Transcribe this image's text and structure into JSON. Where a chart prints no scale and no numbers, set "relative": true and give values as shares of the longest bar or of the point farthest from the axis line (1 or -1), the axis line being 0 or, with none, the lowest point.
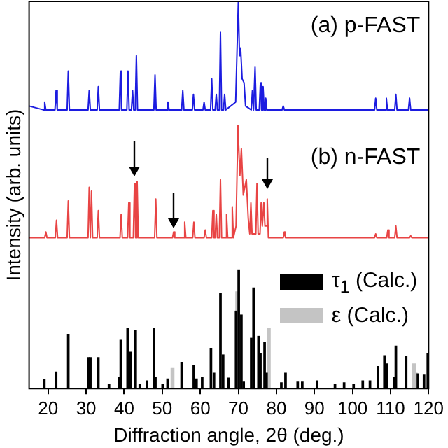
{
  "chart_data": {
    "type": "line",
    "relative": true,
    "xlabel": "Diffraction angle, 2θ (deg.)",
    "ylabel": "Intensity (arb. units)",
    "xlim": [
      15,
      120
    ],
    "xticks": [
      20,
      30,
      40,
      50,
      60,
      70,
      80,
      90,
      100,
      110,
      120
    ],
    "grid": false,
    "legend": "right",
    "marker": "none",
    "annotations": [
      "(a) p-FAST",
      "(b) n-FAST"
    ],
    "series": [
      {
        "color": "#1c1ce0",
        "x": [
          15,
          18.8,
          19.1,
          19.4,
          21.8,
          22.1,
          22.4,
          25.0,
          25.3,
          25.6,
          30.5,
          30.8,
          31.1,
          32.9,
          33.2,
          33.5,
          38.7,
          39.0,
          39.3,
          40.7,
          41.0,
          41.3,
          41.9,
          42.2,
          42.5,
          42.9,
          43.2,
          43.5,
          47.8,
          48.1,
          48.4,
          51.2,
          51.5,
          51.8,
          55.1,
          55.4,
          55.7,
          57.9,
          58.2,
          58.5,
          60.7,
          61.0,
          61.3,
          62.7,
          63.0,
          63.3,
          63.9,
          64.2,
          64.5,
          65.0,
          65.3,
          65.6,
          66.1,
          66.4,
          66.7,
          69.3,
          70.0,
          70.3,
          70.6,
          71.0,
          71.5,
          71.9,
          73.4,
          73.7,
          74.0,
          74.1,
          74.4,
          74.7,
          75.5,
          75.8,
          76.1,
          76.2,
          76.5,
          76.8,
          76.9,
          77.2,
          77.5,
          81.5,
          81.8,
          82.1,
          90,
          100,
          105.8,
          106.1,
          106.4,
          108.6,
          108.9,
          109.2,
          111.1,
          111.4,
          111.7,
          114.7,
          115.0,
          115.3,
          120
        ],
        "values": [
          0.73,
          0.72,
          0.74,
          0.72,
          0.72,
          0.77,
          0.72,
          0.72,
          0.82,
          0.72,
          0.72,
          0.77,
          0.72,
          0.72,
          0.78,
          0.72,
          0.72,
          0.82,
          0.72,
          0.72,
          0.82,
          0.72,
          0.72,
          0.77,
          0.72,
          0.72,
          0.86,
          0.72,
          0.72,
          0.81,
          0.72,
          0.72,
          0.74,
          0.72,
          0.72,
          0.77,
          0.72,
          0.72,
          0.76,
          0.72,
          0.72,
          0.74,
          0.72,
          0.72,
          0.8,
          0.72,
          0.72,
          0.76,
          0.72,
          0.72,
          0.92,
          0.72,
          0.72,
          0.76,
          0.72,
          0.74,
          1,
          0.86,
          0.88,
          0.8,
          0.79,
          0.73,
          0.72,
          0.77,
          0.72,
          0.72,
          0.83,
          0.72,
          0.72,
          0.79,
          0.72,
          0.72,
          0.78,
          0.72,
          0.72,
          0.75,
          0.72,
          0.72,
          0.73,
          0.72,
          0.72,
          0.72,
          0.72,
          0.75,
          0.72,
          0.72,
          0.75,
          0.72,
          0.72,
          0.76,
          0.72,
          0.72,
          0.75,
          0.72,
          0.72
        ]
      },
      {
        "color": "#e84444",
        "x": [
          15,
          19.1,
          19.4,
          19.7,
          21.9,
          22.2,
          22.5,
          25.0,
          25.3,
          25.6,
          30.5,
          30.8,
          31.1,
          31.4,
          31.7,
          32.9,
          33.2,
          33.5,
          38.9,
          39.2,
          39.5,
          40.9,
          41.2,
          41.5,
          42.4,
          42.7,
          43.0,
          43.1,
          43.4,
          43.7,
          48.0,
          48.3,
          48.6,
          52.7,
          53.0,
          53.3,
          55.6,
          55.9,
          56.2,
          58.0,
          58.3,
          58.6,
          61.0,
          61.3,
          61.6,
          63.0,
          63.3,
          63.6,
          63.9,
          64.2,
          64.5,
          65.0,
          65.3,
          65.6,
          66.6,
          66.9,
          67.2,
          68.1,
          68.4,
          68.7,
          69.4,
          69.9,
          70.4,
          70.8,
          71.3,
          72.1,
          72.6,
          73.0,
          73.3,
          73.6,
          74.6,
          74.9,
          75.2,
          75.7,
          76.0,
          76.3,
          76.4,
          76.7,
          77.0,
          77.3,
          77.6,
          77.9,
          81.8,
          82.1,
          82.4,
          90,
          100,
          105.8,
          106.1,
          106.4,
          109.0,
          109.3,
          109.6,
          111.1,
          111.4,
          111.7,
          115.0,
          115.3,
          115.6,
          120
        ],
        "values": [
          0.39,
          0.39,
          0.405,
          0.39,
          0.39,
          0.435,
          0.39,
          0.39,
          0.485,
          0.39,
          0.39,
          0.52,
          0.39,
          0.51,
          0.39,
          0.39,
          0.46,
          0.39,
          0.39,
          0.45,
          0.39,
          0.39,
          0.48,
          0.39,
          0.39,
          0.53,
          0.39,
          0.39,
          0.535,
          0.39,
          0.39,
          0.49,
          0.39,
          0.39,
          0.405,
          0.39,
          0.39,
          0.43,
          0.39,
          0.39,
          0.43,
          0.39,
          0.39,
          0.41,
          0.39,
          0.39,
          0.46,
          0.39,
          0.39,
          0.45,
          0.39,
          0.39,
          0.54,
          0.39,
          0.39,
          0.45,
          0.39,
          0.39,
          0.47,
          0.39,
          0.42,
          0.68,
          0.55,
          0.62,
          0.5,
          0.54,
          0.44,
          0.4,
          0.48,
          0.4,
          0.4,
          0.53,
          0.4,
          0.4,
          0.48,
          0.42,
          0.42,
          0.48,
          0.42,
          0.42,
          0.49,
          0.39,
          0.39,
          0.405,
          0.39,
          0.39,
          0.39,
          0.39,
          0.4,
          0.39,
          0.39,
          0.41,
          0.39,
          0.39,
          0.42,
          0.39,
          0.39,
          0.395,
          0.39,
          0.39
        ]
      },
      {
        "type": "bar",
        "name": "τ$_{1}$ (Calc.)",
        "color": "#000000",
        "x": [
          19.0,
          22.1,
          25.3,
          30.6,
          31.1,
          33.2,
          36.0,
          38.6,
          39.1,
          40.9,
          41.7,
          43.0,
          44.1,
          46.0,
          47.8,
          48.2,
          50.1,
          51.4,
          55.1,
          58.3,
          59.0,
          60.5,
          62.8,
          63.6,
          65.3,
          66.0,
          67.4,
          69.4,
          70.1,
          70.8,
          71.4,
          73.4,
          74.0,
          75.3,
          75.8,
          76.9,
          77.4,
          81.3,
          82.4,
          85.6,
          86.8,
          90.7,
          95.4,
          97.8,
          100.3,
          102.7,
          104.6,
          106.7,
          108.4,
          109.1,
          110.9,
          111.4,
          114.1,
          117.2,
          118.8,
          119.8
        ],
        "values": [
          0.024,
          0.043,
          0.14,
          0.08,
          0.08,
          0.08,
          0.01,
          0.03,
          0.125,
          0.155,
          0.094,
          0.15,
          0.01,
          0.02,
          0.155,
          0.03,
          0.01,
          0.025,
          0.068,
          0.06,
          0.025,
          0.03,
          0.104,
          0.04,
          0.245,
          0.087,
          0.027,
          0.2,
          0.305,
          0.19,
          0.017,
          0.13,
          0.26,
          0.135,
          0.09,
          0.12,
          0.04,
          0.015,
          0.04,
          0.017,
          0.017,
          0.02,
          0.012,
          0.015,
          0.012,
          0.02,
          0.02,
          0.057,
          0.085,
          0.064,
          0.03,
          0.11,
          0.084,
          0.038,
          0.035,
          0.09
        ]
      },
      {
        "type": "bar",
        "name": "ε (Calc.)",
        "color": "#c4c4c4",
        "x": [
          52.7,
          69.7,
          78.0,
          116.2,
          116.6
        ],
        "values": [
          0.052,
          0.25,
          0.155,
          0.064,
          0.04
        ]
      }
    ]
  }
}
